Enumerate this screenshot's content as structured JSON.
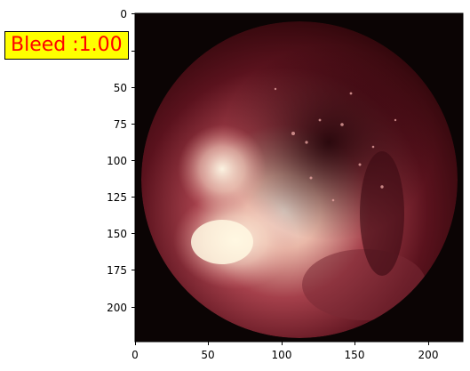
{
  "image_view": {
    "badge": {
      "label": "Bleed :1.00",
      "text_color": "#ff0000",
      "background": "#ffff00"
    },
    "x_axis": {
      "ticks": [
        "0",
        "50",
        "100",
        "150",
        "200"
      ],
      "range": [
        0,
        224
      ]
    },
    "y_axis": {
      "ticks": [
        "0",
        "25",
        "50",
        "75",
        "100",
        "125",
        "150",
        "175",
        "200"
      ],
      "range": [
        0,
        224
      ]
    },
    "image_description": "circular endoscopic view, dark red tissue with a bright white-pink area on the lower left"
  }
}
